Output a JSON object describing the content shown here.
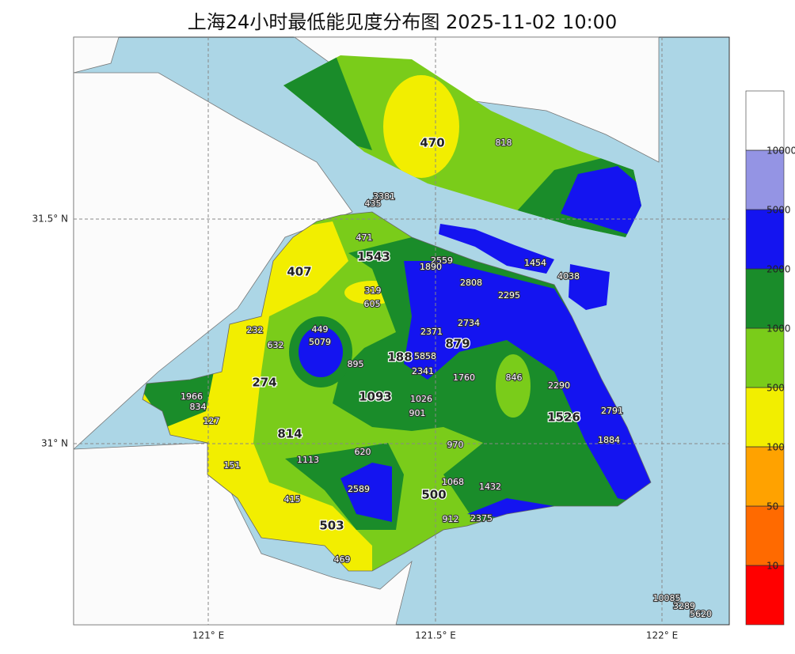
{
  "title": "上海24小时最低能见度分布图 2025-11-02 10:00",
  "axes": {
    "lat_labels": [
      "31.5° N",
      "31° N"
    ],
    "lon_labels": [
      "121° E",
      "121.5° E",
      "122° E"
    ]
  },
  "legend": {
    "levels": [
      10,
      50,
      100,
      500,
      1000,
      2000,
      5000,
      10000
    ],
    "colors": [
      "#ff0000",
      "#ff6a00",
      "#ffa200",
      "#f2ee00",
      "#7acc1a",
      "#1a8c2a",
      "#1414f0",
      "#9494e4",
      "#ffffff"
    ]
  },
  "area_labels": [
    470,
    407,
    1543,
    274,
    188,
    879,
    1093,
    814,
    500,
    503,
    1526
  ],
  "station_values": [
    818,
    3381,
    435,
    471,
    2559,
    1890,
    1454,
    4038,
    2808,
    2295,
    319,
    605,
    449,
    5079,
    232,
    632,
    2371,
    2734,
    895,
    5858,
    2341,
    1760,
    846,
    2290,
    1966,
    834,
    127,
    1026,
    901,
    2791,
    970,
    1884,
    1113,
    620,
    151,
    1068,
    1432,
    2589,
    415,
    912,
    2375,
    469,
    10085,
    3289,
    5620
  ]
}
